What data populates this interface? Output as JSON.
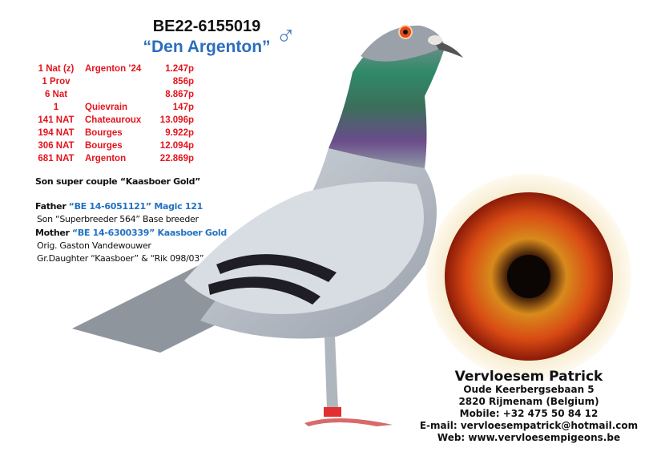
{
  "header": {
    "ring_number": "BE22-6155019",
    "pigeon_name": "“Den Argenton”",
    "sex_symbol": "♂"
  },
  "results": [
    {
      "place": "1 Nat (z)",
      "race": "Argenton ’24",
      "birds": "1.247p"
    },
    {
      "place": "1 Prov",
      "race": "",
      "birds": "856p"
    },
    {
      "place": "6 Nat",
      "race": "",
      "birds": "8.867p"
    },
    {
      "place": "1",
      "race": "Quievrain",
      "birds": "147p"
    },
    {
      "place": "141 NAT",
      "race": "Chateauroux",
      "birds": "13.096p"
    },
    {
      "place": "194 NAT",
      "race": "Bourges",
      "birds": "9.922p"
    },
    {
      "place": "306 NAT",
      "race": "Bourges",
      "birds": "12.094p"
    },
    {
      "place": "681 NAT",
      "race": "Argenton",
      "birds": "22.869p"
    }
  ],
  "pedigree": {
    "summary": "Son super couple “Kaasboer Gold”",
    "father_label": "Father",
    "father_id": "“BE 14-6051121” Magic 121",
    "father_note": "Son “Superbreeder 564” Base breeder",
    "mother_label": "Mother",
    "mother_id": "“BE 14-6300339” Kaasboer Gold",
    "mother_note1": "Orig. Gaston Vandewouwer",
    "mother_note2": "Gr.Daughter “Kaasboer” & “Rik 098/03”"
  },
  "contact": {
    "name": "Vervloesem Patrick",
    "address": "Oude Keerbergsebaan 5",
    "city": "2820 Rijmenam (Belgium)",
    "mobile": "Mobile: +32 475 50 84 12",
    "email": "E-mail: vervloesempatrick@hotmail.com",
    "web": "Web: www.vervloesempigeons.be"
  },
  "colors": {
    "results_red": "#e3141c",
    "accent_blue": "#2a6ebd",
    "iris_orange": "#e0601a"
  }
}
